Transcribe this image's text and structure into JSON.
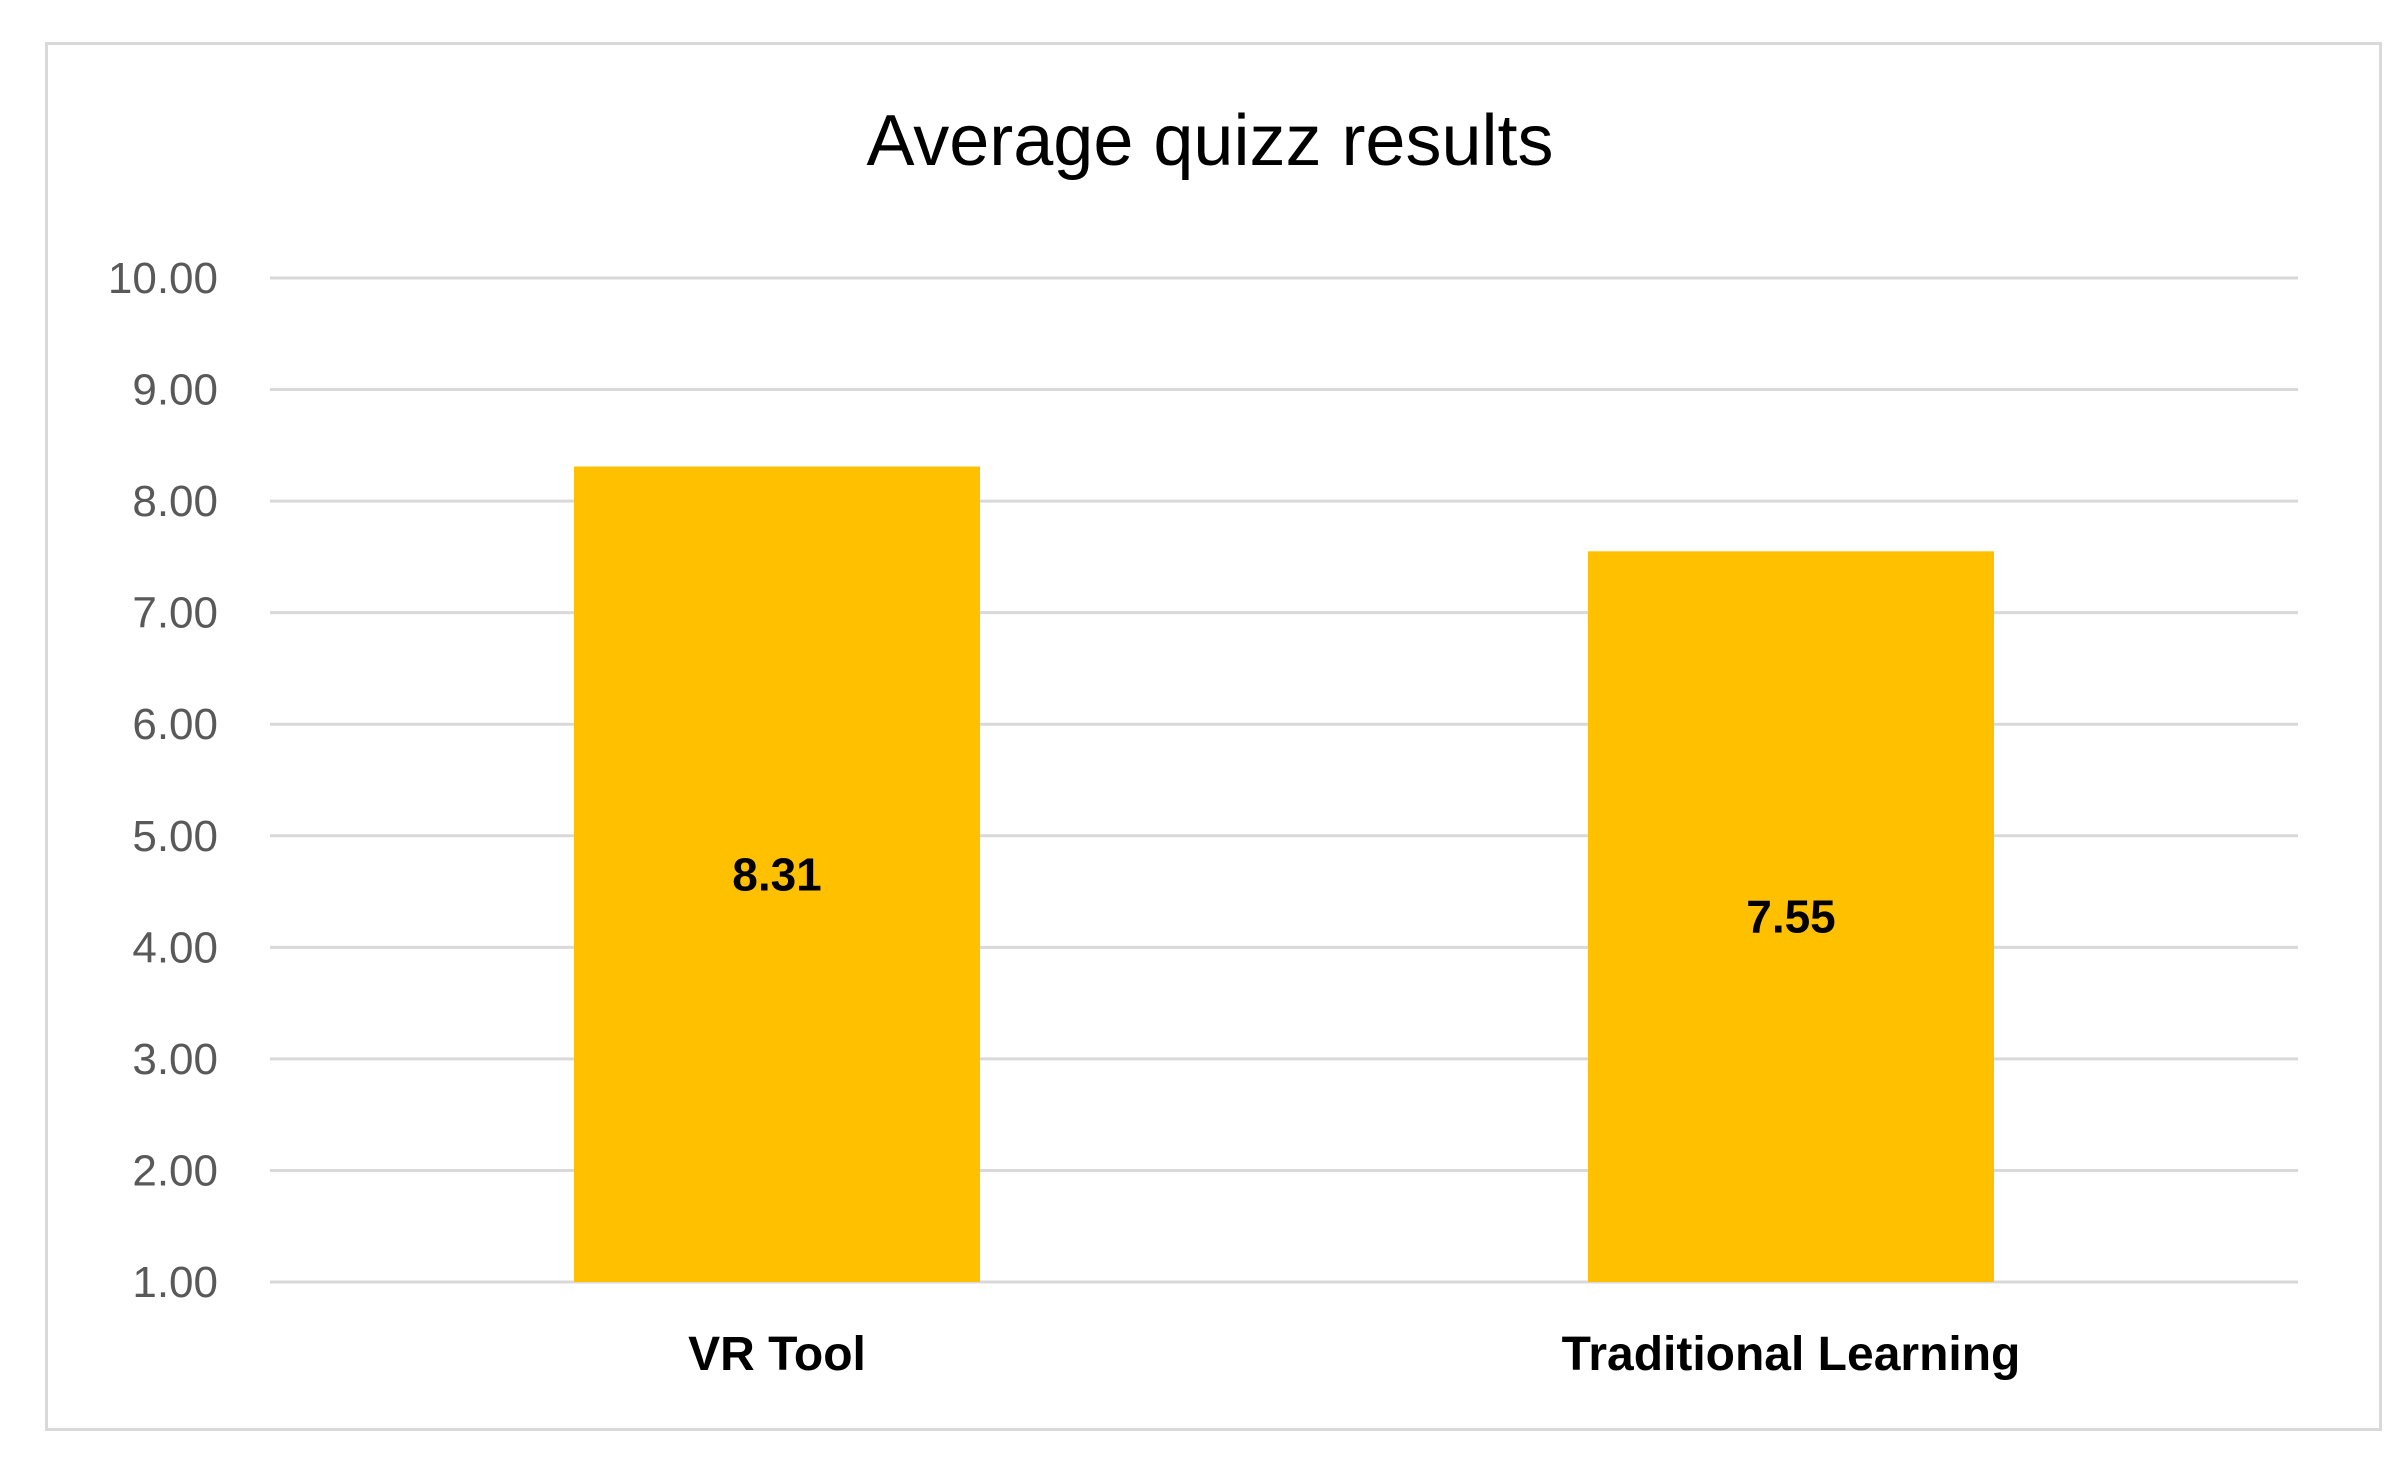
{
  "chart_data": {
    "type": "bar",
    "title": "Average quizz results",
    "xlabel": "",
    "ylabel": "",
    "categories": [
      "VR Tool",
      "Traditional Learning"
    ],
    "values": [
      8.31,
      7.55
    ],
    "data_labels": [
      "8.31",
      "7.55"
    ],
    "ylim": [
      1.0,
      10.0
    ],
    "yticks": [
      "1.00",
      "2.00",
      "3.00",
      "4.00",
      "5.00",
      "6.00",
      "7.00",
      "8.00",
      "9.00",
      "10.00"
    ],
    "grid": true,
    "legend": "none",
    "bar_color": "#FFC000",
    "gridline_color": "#D9D9D9",
    "text_color": "#595959",
    "title_color": "#000000",
    "label_color": "#000000"
  }
}
